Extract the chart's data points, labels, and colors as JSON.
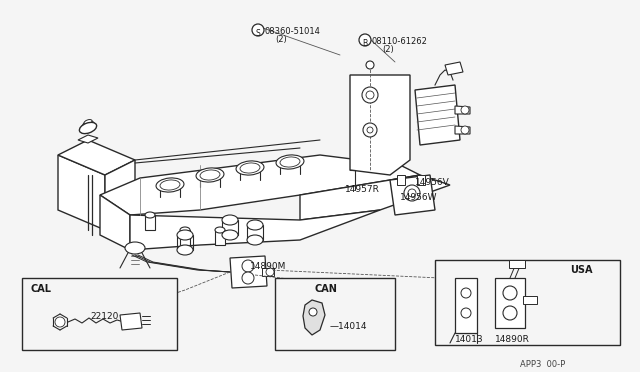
{
  "background_color": "#f5f5f5",
  "line_color": "#2a2a2a",
  "text_color": "#1a1a1a",
  "labels": {
    "part1": "08360-51014",
    "part1_qty": "(2)",
    "part1_symbol": "S",
    "part2": "08110-61262",
    "part2_qty": "(2)",
    "part2_symbol": "B",
    "part3": "14957R",
    "part4": "14956V",
    "part5": "14956W",
    "part6": "22120",
    "part6_label": "CAL",
    "part7": "14890M",
    "part8": "14014",
    "part8_label": "CAN",
    "part9": "14013",
    "part10": "14890R",
    "part10_label": "USA",
    "fig_ref": "APP3  00-P"
  }
}
